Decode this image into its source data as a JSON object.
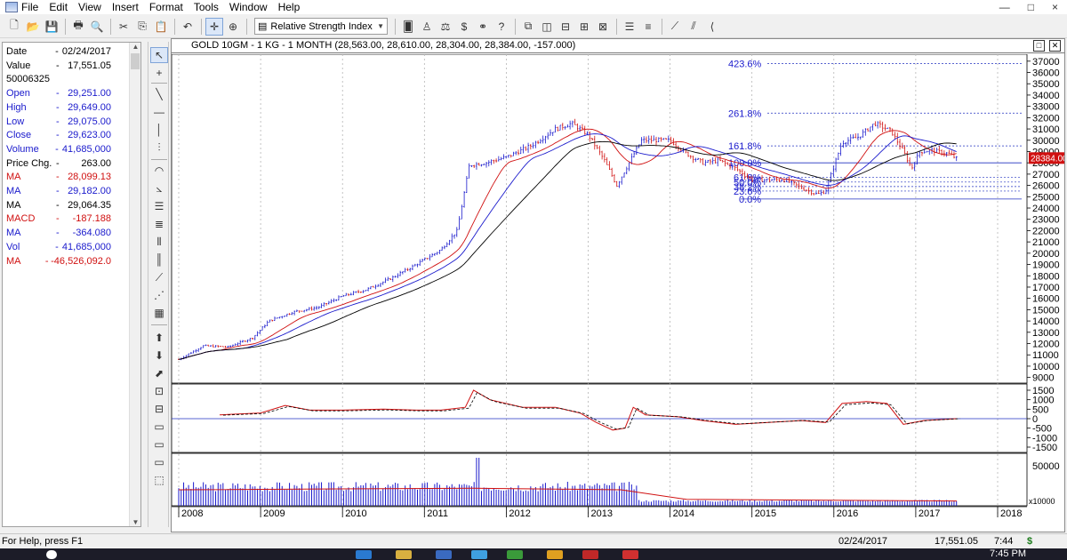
{
  "menu": [
    "File",
    "Edit",
    "View",
    "Insert",
    "Format",
    "Tools",
    "Window",
    "Help"
  ],
  "window_controls": [
    "—",
    "□",
    "×"
  ],
  "toolbar": {
    "indicator_select": "Relative Strength Index"
  },
  "data_panel": {
    "rows": [
      {
        "label": "Date",
        "value": "02/24/2017",
        "color": "black"
      },
      {
        "label": "Value",
        "value": "17,551.05",
        "color": "black"
      },
      {
        "label": "50006325",
        "value": "",
        "color": "black"
      },
      {
        "label": "Open",
        "value": "29,251.00",
        "color": "blue"
      },
      {
        "label": "High",
        "value": "29,649.00",
        "color": "blue"
      },
      {
        "label": "Low",
        "value": "29,075.00",
        "color": "blue"
      },
      {
        "label": "Close",
        "value": "29,623.00",
        "color": "blue"
      },
      {
        "label": "Volume",
        "value": "41,685,000",
        "color": "blue"
      },
      {
        "label": "Price Chg.",
        "value": "263.00",
        "color": "black"
      },
      {
        "label": "MA",
        "value": "28,099.13",
        "color": "red"
      },
      {
        "label": "MA",
        "value": "29,182.00",
        "color": "blue"
      },
      {
        "label": "MA",
        "value": "29,064.35",
        "color": "black"
      },
      {
        "label": "MACD",
        "value": "-187.188",
        "color": "red"
      },
      {
        "label": "MA",
        "value": "-364.080",
        "color": "blue"
      },
      {
        "label": "Vol",
        "value": "41,685,000",
        "color": "blue"
      },
      {
        "label": "MA",
        "value": "-46,526,092.0",
        "color": "red"
      }
    ]
  },
  "chart": {
    "title": "GOLD 10GM - 1 KG - 1 MONTH (28,563.00, 28,610.00, 28,304.00, 28,384.00, -157.000)",
    "last_price_tag": "28384.00",
    "price_axis_labels": [
      "37000",
      "36000",
      "35000",
      "34000",
      "33000",
      "32000",
      "31000",
      "30000",
      "29000",
      "28000",
      "27000",
      "26000",
      "25000",
      "24000",
      "23000",
      "22000",
      "21000",
      "20000",
      "19000",
      "18000",
      "17000",
      "16000",
      "15000",
      "14000",
      "13000",
      "12000",
      "11000",
      "10000",
      "9000"
    ],
    "macd_axis_labels": [
      "1500",
      "1000",
      "500",
      "0",
      "-500",
      "-1000",
      "-1500"
    ],
    "volume_axis_labels": [
      "50000"
    ],
    "volume_unit": "x10000",
    "year_labels": [
      "2008",
      "2009",
      "2010",
      "2011",
      "2012",
      "2013",
      "2014",
      "2015",
      "2016",
      "2017",
      "2018"
    ],
    "fib_labels": [
      "423.6%",
      "261.8%",
      "161.8%",
      "100.0%",
      "61.8%",
      "50.0%",
      "38.2%",
      "23.6%",
      "0.0%"
    ]
  },
  "chart_data": {
    "type": "candlestick",
    "timeframe": "1 MONTH",
    "title": "GOLD 10GM - 1 KG - 1 MONTH (28,563.00, 28,610.00, 28,304.00, 28,384.00, -157.000)",
    "ohlc_last": {
      "open": 28563,
      "high": 28610,
      "low": 28304,
      "close": 28384,
      "change": -157
    },
    "y_range": [
      8500,
      37300
    ],
    "x_range": [
      "2008",
      "2018"
    ],
    "price_path": [
      [
        2008.0,
        10600
      ],
      [
        2008.3,
        11800
      ],
      [
        2008.6,
        11700
      ],
      [
        2008.9,
        12500
      ],
      [
        2009.1,
        14000
      ],
      [
        2009.4,
        14800
      ],
      [
        2009.7,
        15200
      ],
      [
        2010.0,
        16200
      ],
      [
        2010.3,
        16800
      ],
      [
        2010.6,
        17800
      ],
      [
        2010.9,
        19000
      ],
      [
        2011.2,
        20300
      ],
      [
        2011.4,
        22000
      ],
      [
        2011.55,
        27800
      ],
      [
        2011.75,
        28000
      ],
      [
        2012.0,
        28500
      ],
      [
        2012.3,
        29500
      ],
      [
        2012.6,
        31000
      ],
      [
        2012.8,
        31500
      ],
      [
        2013.0,
        30500
      ],
      [
        2013.2,
        28200
      ],
      [
        2013.35,
        26000
      ],
      [
        2013.5,
        28000
      ],
      [
        2013.65,
        30000
      ],
      [
        2013.85,
        30000
      ],
      [
        2014.0,
        30000
      ],
      [
        2014.2,
        28800
      ],
      [
        2014.4,
        28000
      ],
      [
        2014.6,
        28200
      ],
      [
        2014.8,
        27500
      ],
      [
        2015.0,
        26500
      ],
      [
        2015.2,
        26500
      ],
      [
        2015.4,
        26500
      ],
      [
        2015.6,
        25800
      ],
      [
        2015.8,
        25200
      ],
      [
        2015.9,
        25500
      ],
      [
        2016.0,
        27700
      ],
      [
        2016.1,
        29800
      ],
      [
        2016.3,
        30300
      ],
      [
        2016.5,
        31500
      ],
      [
        2016.7,
        30800
      ],
      [
        2016.85,
        29000
      ],
      [
        2016.95,
        27500
      ],
      [
        2017.05,
        29000
      ],
      [
        2017.2,
        29100
      ],
      [
        2017.4,
        28800
      ],
      [
        2017.5,
        28384
      ]
    ],
    "fib_levels": [
      {
        "label": "423.6%",
        "value": 36800
      },
      {
        "label": "261.8%",
        "value": 32400
      },
      {
        "label": "161.8%",
        "value": 29500
      },
      {
        "label": "100.0%",
        "value": 28000
      },
      {
        "label": "61.8%",
        "value": 26700
      },
      {
        "label": "50.0%",
        "value": 26300
      },
      {
        "label": "38.2%",
        "value": 25900
      },
      {
        "label": "23.6%",
        "value": 25500
      },
      {
        "label": "0.0%",
        "value": 24800
      }
    ],
    "macd_range": [
      -1500,
      1500
    ],
    "macd_path": [
      [
        2008.5,
        200
      ],
      [
        2009.0,
        300
      ],
      [
        2009.3,
        700
      ],
      [
        2009.6,
        450
      ],
      [
        2010.0,
        450
      ],
      [
        2010.5,
        500
      ],
      [
        2010.9,
        450
      ],
      [
        2011.2,
        450
      ],
      [
        2011.5,
        600
      ],
      [
        2011.6,
        1500
      ],
      [
        2011.8,
        1000
      ],
      [
        2012.2,
        600
      ],
      [
        2012.6,
        600
      ],
      [
        2012.9,
        300
      ],
      [
        2013.1,
        -200
      ],
      [
        2013.3,
        -600
      ],
      [
        2013.45,
        -500
      ],
      [
        2013.55,
        600
      ],
      [
        2013.7,
        200
      ],
      [
        2014.1,
        100
      ],
      [
        2014.4,
        -100
      ],
      [
        2014.8,
        -300
      ],
      [
        2015.2,
        -200
      ],
      [
        2015.6,
        -100
      ],
      [
        2015.9,
        -200
      ],
      [
        2016.1,
        800
      ],
      [
        2016.4,
        900
      ],
      [
        2016.65,
        800
      ],
      [
        2016.85,
        -300
      ],
      [
        2017.1,
        -100
      ],
      [
        2017.5,
        0
      ]
    ],
    "volume_range": [
      0,
      60000
    ],
    "volume_spike": {
      "x": 2011.65,
      "value": 60000
    }
  },
  "status": {
    "help": "For Help, press F1",
    "date": "02/24/2017",
    "value": "17,551.05",
    "time": "7:44",
    "symbol": "$"
  },
  "taskbar": {
    "clock": "7:45 PM"
  }
}
